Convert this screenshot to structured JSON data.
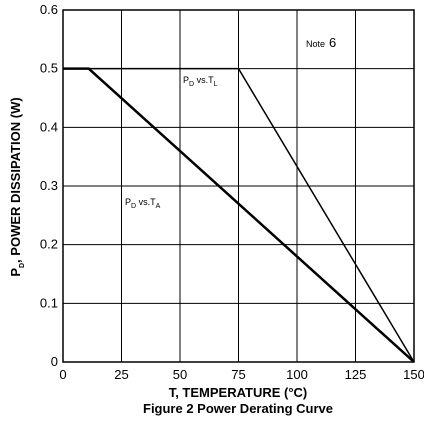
{
  "chart_data": {
    "type": "line",
    "title": "Figure 2 Power Derating Curve",
    "xlabel": "T, TEMPERATURE (°C)",
    "ylabel": "P",
    "ylabel_subscript": "D",
    "ylabel_rest": ", POWER DISSIPATION (W)",
    "xlim": [
      0,
      150
    ],
    "ylim": [
      0,
      0.6
    ],
    "xticks": [
      0,
      25,
      50,
      75,
      100,
      125,
      150
    ],
    "xtick_labels": [
      "0",
      "25",
      "50",
      "75",
      "100",
      "125",
      "150"
    ],
    "yticks": [
      0,
      0.1,
      0.2,
      0.3,
      0.4,
      0.5,
      0.6
    ],
    "ytick_labels": [
      "0",
      "0.1",
      "0.2",
      "0.3",
      "0.4",
      "0.5",
      "0.6"
    ],
    "grid": true,
    "series": [
      {
        "name": "PD vs.TL",
        "label_main": "P",
        "label_sub": "D",
        "label_mid": " vs.T",
        "label_sub2": "L",
        "x": [
          0,
          75,
          150
        ],
        "y": [
          0.5,
          0.5,
          0
        ],
        "stroke_width": 1.5
      },
      {
        "name": "PD vs.TA",
        "label_main": "P",
        "label_sub": "D",
        "label_mid": " vs.T",
        "label_sub2": "A",
        "x": [
          0,
          11,
          150
        ],
        "y": [
          0.5,
          0.5,
          0
        ],
        "stroke_width": 2.5
      }
    ],
    "note": {
      "label": "Note",
      "number": "6"
    }
  }
}
